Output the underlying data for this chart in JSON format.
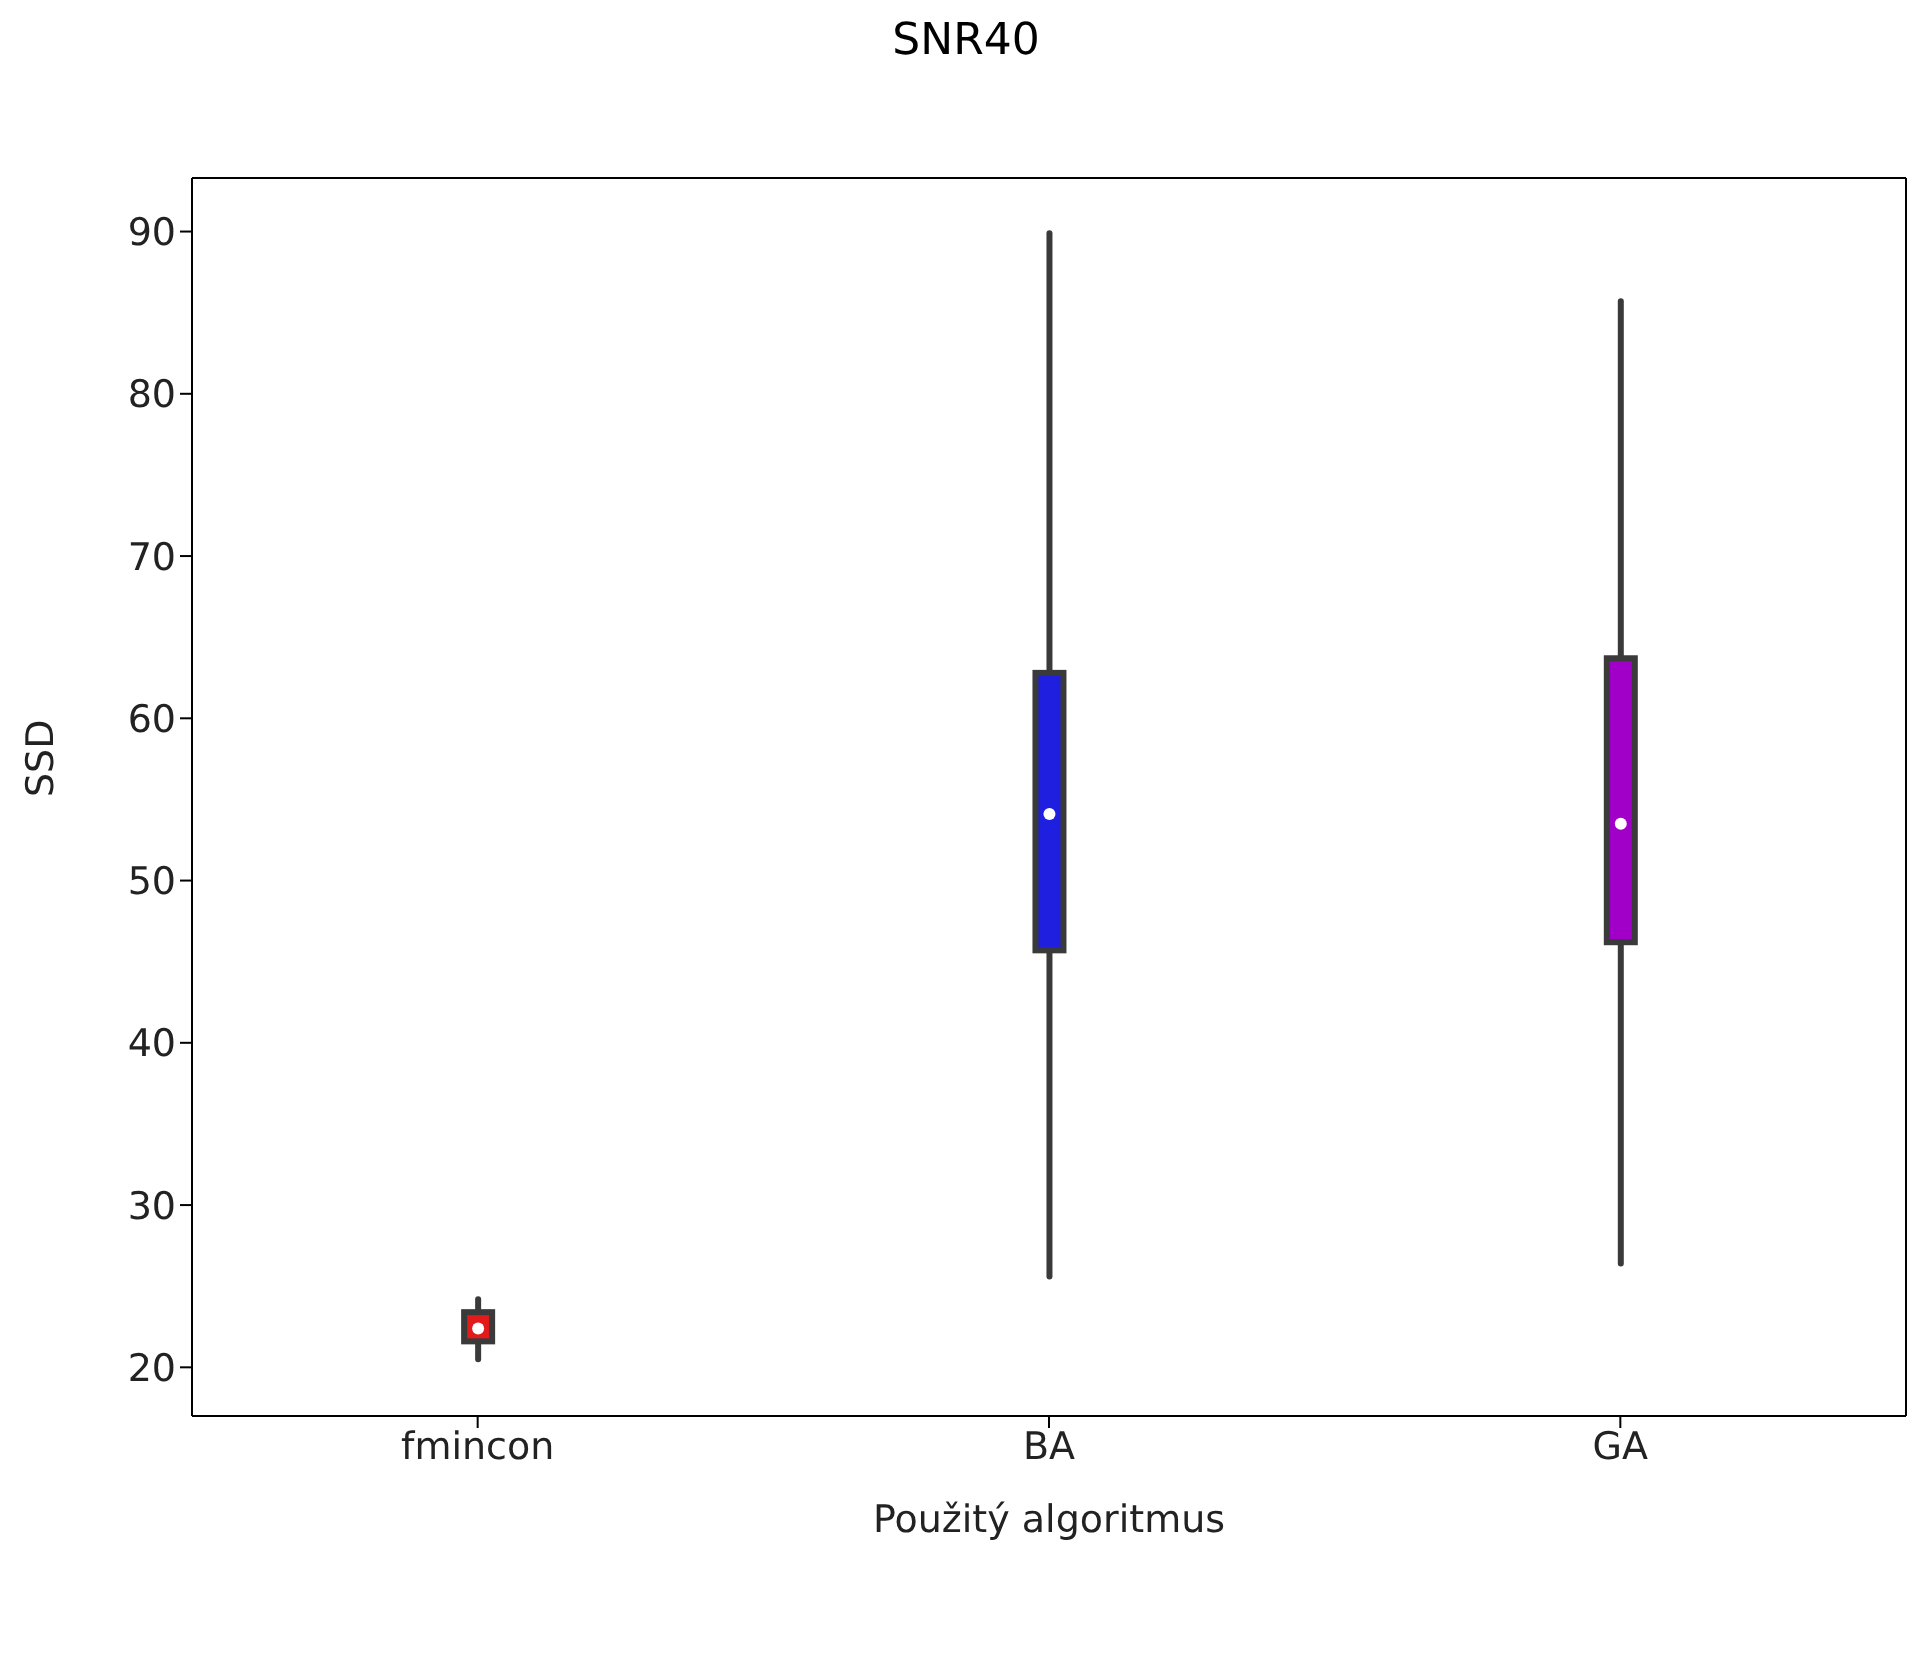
{
  "chart_data": {
    "type": "box",
    "title": "SNR40",
    "xlabel": "Použitý algoritmus",
    "ylabel": "SSD",
    "categories": [
      "fmincon",
      "BA",
      "GA"
    ],
    "colors": [
      "#e31a1c",
      "#1f1fe0",
      "#a000c8"
    ],
    "boxes": [
      {
        "low": 20.5,
        "q1": 21.6,
        "median": 22.4,
        "q3": 23.4,
        "high": 24.2
      },
      {
        "low": 25.6,
        "q1": 45.7,
        "median": 54.1,
        "q3": 62.8,
        "high": 89.9
      },
      {
        "low": 26.4,
        "q1": 46.2,
        "median": 53.5,
        "q3": 63.7,
        "high": 85.7
      }
    ],
    "ylim": [
      17,
      93.3
    ],
    "yticks": [
      20,
      30,
      40,
      50,
      60,
      70,
      80,
      90
    ]
  }
}
